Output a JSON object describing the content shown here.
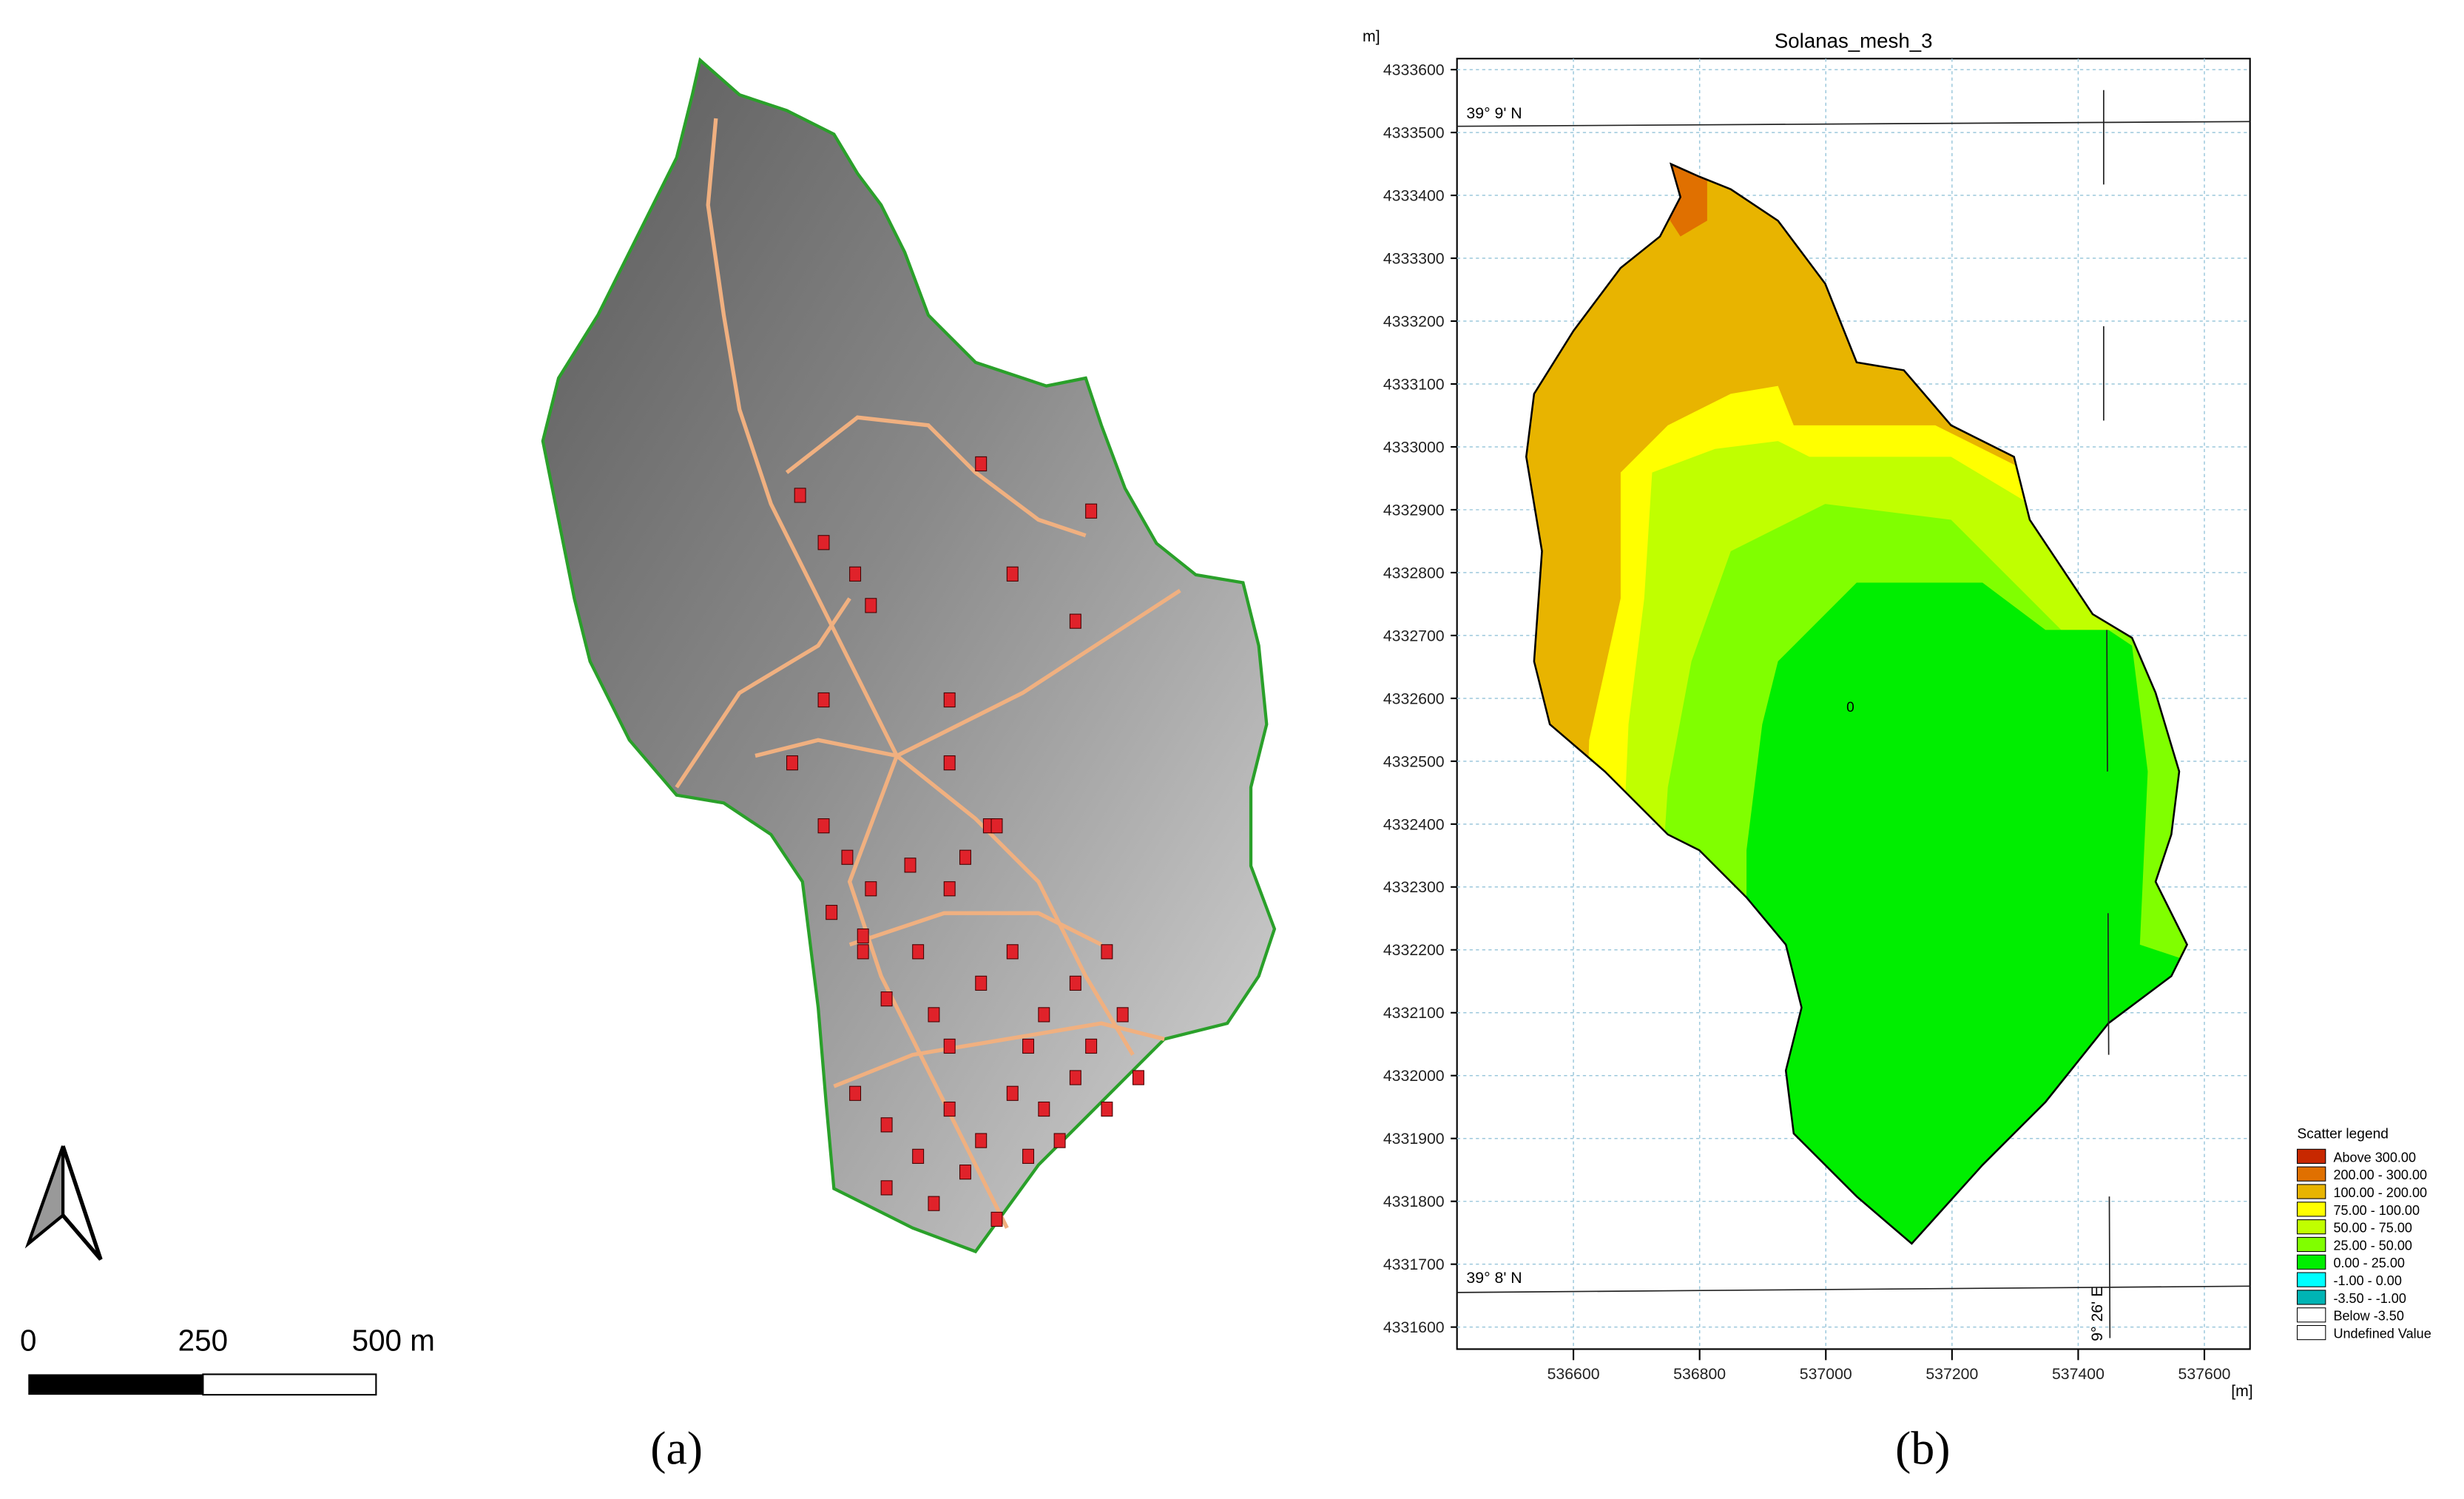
{
  "panel_a": {
    "scale_labels": [
      "0",
      "250",
      "500 m"
    ],
    "caption": "(a)"
  },
  "panel_b": {
    "title": "Solanas_mesh_3",
    "y_unit": "m]",
    "x_unit": "[m]",
    "yticks": [
      4331600,
      4331700,
      4331800,
      4331900,
      4332000,
      4332100,
      4332200,
      4332300,
      4332400,
      4332500,
      4332600,
      4332700,
      4332800,
      4332900,
      4333000,
      4333100,
      4333200,
      4333300,
      4333400,
      4333500,
      4333600
    ],
    "xticks": [
      536600,
      536800,
      537000,
      537200,
      537400,
      537600
    ],
    "graticule": [
      "39° 9' N",
      "39° 8' N",
      "9° 26' E"
    ],
    "point_label": "0",
    "legend": {
      "title": "Scatter legend",
      "items": [
        {
          "label": "Above 300.00",
          "color": "#c82800"
        },
        {
          "label": "200.00 - 300.00",
          "color": "#e07000"
        },
        {
          "label": "100.00 - 200.00",
          "color": "#e8b400"
        },
        {
          "label": "75.00 - 100.00",
          "color": "#ffff00"
        },
        {
          "label": "50.00 - 75.00",
          "color": "#c0ff00"
        },
        {
          "label": "25.00 - 50.00",
          "color": "#80ff00"
        },
        {
          "label": "0.00 - 25.00",
          "color": "#00ee00"
        },
        {
          "label": "-1.00 - 0.00",
          "color": "#00ffff"
        },
        {
          "label": "-3.50 - -1.00",
          "color": "#00b4b4"
        },
        {
          "label": "Below -3.50",
          "color": "#ffffff"
        },
        {
          "label": "Undefined Value",
          "color": "#ffffff"
        }
      ]
    },
    "caption": "(b)"
  }
}
